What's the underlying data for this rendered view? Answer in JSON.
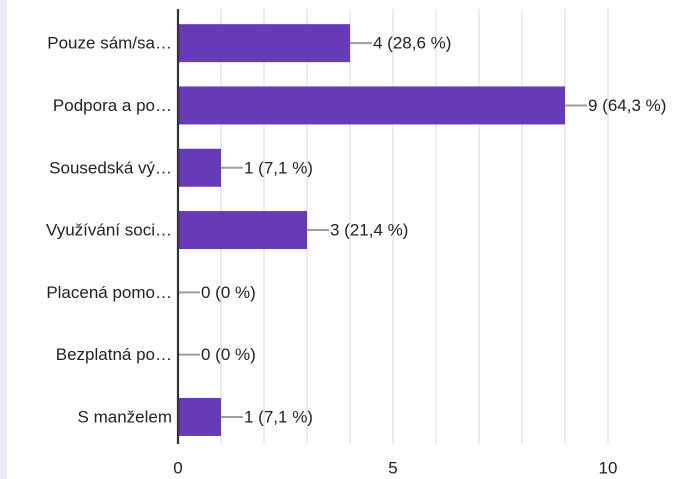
{
  "chart_data": {
    "type": "bar",
    "orientation": "horizontal",
    "categories": [
      "Pouze sám/sa…",
      "Podpora a po…",
      "Sousedská vý…",
      "Využívání soci…",
      "Placená pomo…",
      "Bezplatná po…",
      "S manželem"
    ],
    "values": [
      4,
      9,
      1,
      3,
      0,
      0,
      1
    ],
    "value_labels": [
      "4 (28,6 %)",
      "9 (64,3 %)",
      "1 (7,1 %)",
      "3 (21,4 %)",
      "0 (0 %)",
      "0 (0 %)",
      "1 (7,1 %)"
    ],
    "xlim": [
      0,
      10
    ],
    "xticks": [
      "0",
      "5",
      "10"
    ],
    "grid": true,
    "colors": {
      "bar": "#673ab7",
      "grid": "#e6e6e6",
      "axis": "#333333",
      "leader": "#9e9e9e",
      "text": "#222222",
      "side_strip": "#ebeaf5"
    }
  }
}
